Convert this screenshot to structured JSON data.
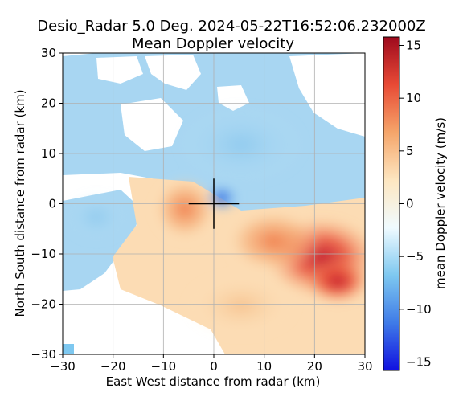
{
  "chart_data": {
    "type": "heatmap",
    "title_line1": "Desio_Radar 5.0 Deg. 2024-05-22T16:52:06.232000Z",
    "title_line2": "Mean Doppler velocity",
    "xlabel": "East West distance from radar (km)",
    "ylabel": "North South distance from radar (km)",
    "xlim": [
      -30,
      30
    ],
    "ylim": [
      -30,
      30
    ],
    "xticks": [
      -30,
      -20,
      -10,
      0,
      10,
      20,
      30
    ],
    "yticks": [
      -30,
      -20,
      -10,
      0,
      10,
      20,
      30
    ],
    "xtick_labels": [
      "−30",
      "−20",
      "−10",
      "0",
      "10",
      "20",
      "30"
    ],
    "ytick_labels": [
      "−30",
      "−20",
      "−10",
      "0",
      "10",
      "20",
      "30"
    ],
    "grid": true,
    "colorbar": {
      "label": "mean Doppler velocity (m/s)",
      "range": [
        -15.8,
        15.8
      ],
      "ticks": [
        -15,
        -10,
        -5,
        0,
        5,
        10,
        15
      ],
      "tick_labels": [
        "−15",
        "−10",
        "−5",
        "0",
        "5",
        "10",
        "15"
      ],
      "colors": [
        "#1010e0",
        "#3f7be8",
        "#7ec8f0",
        "#f0fbff",
        "#fde6c0",
        "#f5a56a",
        "#e84a35",
        "#9e0a1e"
      ]
    },
    "radar_crosshair_km": [
      [
        -5,
        0,
        5,
        0
      ],
      [
        0,
        -5,
        0,
        5
      ]
    ],
    "field_description_points": [
      {
        "x": -20,
        "y": 20,
        "v": -4
      },
      {
        "x": 0,
        "y": 20,
        "v": -4
      },
      {
        "x": 20,
        "y": 20,
        "v": -3
      },
      {
        "x": -20,
        "y": 0,
        "v": -4
      },
      {
        "x": -5,
        "y": 0,
        "v": 7
      },
      {
        "x": 3,
        "y": 1,
        "v": -9
      },
      {
        "x": 20,
        "y": -10,
        "v": 11
      },
      {
        "x": 25,
        "y": -15,
        "v": 14
      },
      {
        "x": 0,
        "y": -20,
        "v": 5
      },
      {
        "x": -20,
        "y": -15,
        "v": -4
      }
    ]
  }
}
